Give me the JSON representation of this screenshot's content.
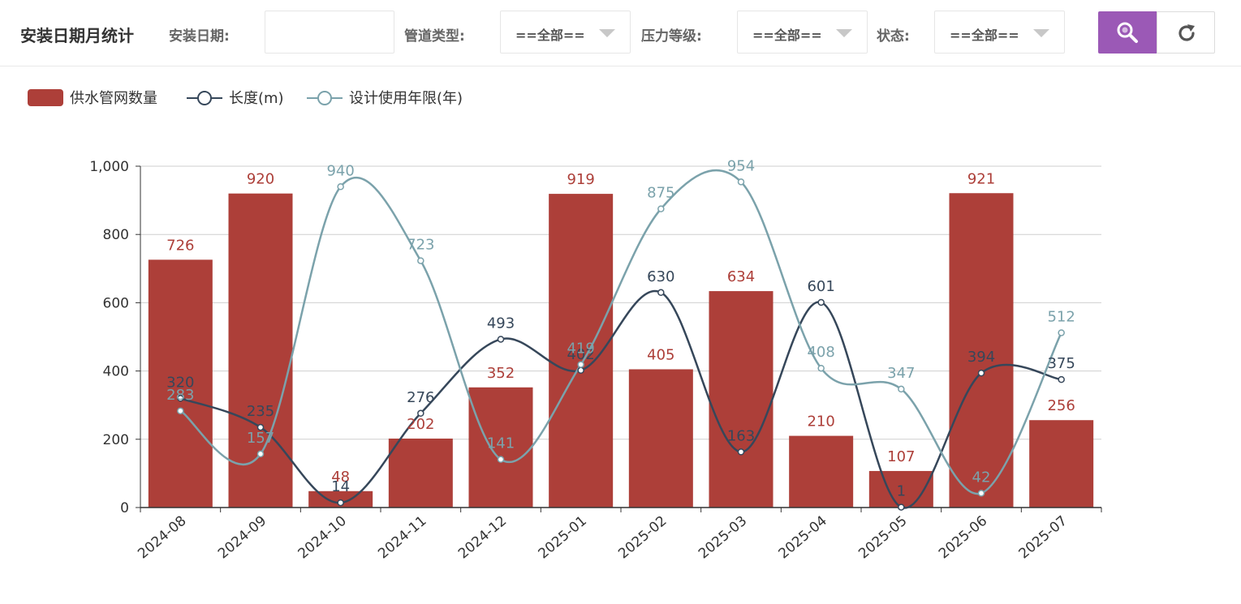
{
  "header": {
    "title": "安装日期月统计",
    "install_date_label": "安装日期:",
    "install_date_value": "",
    "pipe_type_label": "管道类型:",
    "pipe_type_value": "==全部==",
    "pressure_label": "压力等级:",
    "pressure_value": "==全部==",
    "status_label": "状态:",
    "status_value": "==全部==",
    "search_icon": "search-icon",
    "reset_icon": "refresh-icon"
  },
  "colors": {
    "bar": "#ad3f39",
    "length_line": "#36475a",
    "design_line": "#7ba2ab",
    "search_button": "#9b59b6"
  },
  "chart_data": {
    "type": "bar",
    "categories": [
      "2024-08",
      "2024-09",
      "2024-10",
      "2024-11",
      "2024-12",
      "2025-01",
      "2025-02",
      "2025-03",
      "2025-04",
      "2025-05",
      "2025-06",
      "2025-07"
    ],
    "ylim": [
      0,
      1000
    ],
    "yticks": [
      0,
      200,
      400,
      600,
      800,
      1000
    ],
    "ytick_labels": [
      "0",
      "200",
      "400",
      "600",
      "800",
      "1,000"
    ],
    "grid": true,
    "legend_position": "top-left",
    "series": [
      {
        "name": "供水管网数量",
        "type": "bar",
        "values": [
          726,
          920,
          48,
          202,
          352,
          919,
          405,
          634,
          210,
          107,
          921,
          256
        ]
      },
      {
        "name": "长度(m)",
        "type": "line",
        "smooth": true,
        "values": [
          320,
          235,
          14,
          276,
          493,
          402,
          630,
          163,
          601,
          1,
          394,
          375
        ]
      },
      {
        "name": "设计使用年限(年)",
        "type": "line",
        "smooth": true,
        "values": [
          283,
          157,
          940,
          723,
          141,
          419,
          875,
          954,
          408,
          347,
          42,
          512
        ]
      }
    ]
  }
}
